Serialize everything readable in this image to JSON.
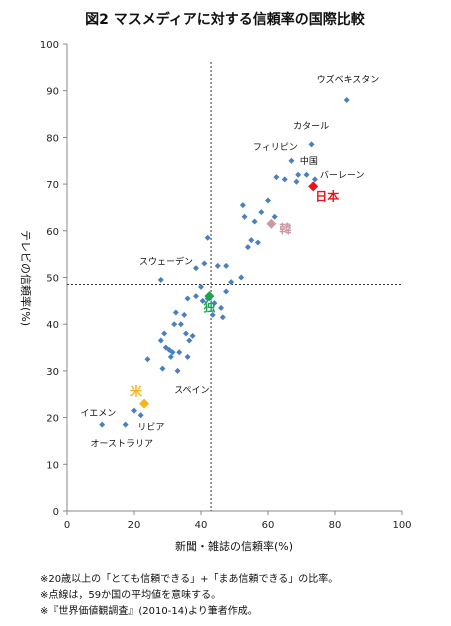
{
  "chart_data": {
    "type": "scatter",
    "title": "図2 マスメディアに対する信頼率の国際比較",
    "xlabel": "新聞・雑誌の信頼率(%)",
    "ylabel": "テレビの信頼率(%)",
    "xlim": [
      0,
      100
    ],
    "ylim": [
      0,
      100
    ],
    "x_ticks": [
      "0",
      "20",
      "40",
      "60",
      "80",
      "100"
    ],
    "y_ticks": [
      "0",
      "10",
      "20",
      "30",
      "40",
      "50",
      "60",
      "70",
      "80",
      "90",
      "100"
    ],
    "grid": false,
    "reference_lines": {
      "x": 43,
      "y": 48.5
    },
    "points": [
      [
        83.5,
        88
      ],
      [
        73,
        78.5
      ],
      [
        67,
        75
      ],
      [
        69,
        72
      ],
      [
        71.5,
        72
      ],
      [
        68.5,
        70.5
      ],
      [
        74,
        71
      ],
      [
        65,
        71
      ],
      [
        62.5,
        71.5
      ],
      [
        60,
        66.5
      ],
      [
        58,
        64
      ],
      [
        62,
        63
      ],
      [
        52.5,
        65.5
      ],
      [
        56,
        62
      ],
      [
        53,
        63
      ],
      [
        55,
        58
      ],
      [
        54,
        56.5
      ],
      [
        57,
        57.5
      ],
      [
        52,
        50
      ],
      [
        49,
        49
      ],
      [
        47.5,
        47
      ],
      [
        47.5,
        52.5
      ],
      [
        45,
        52.5
      ],
      [
        42,
        58.5
      ],
      [
        41,
        53
      ],
      [
        38.5,
        52
      ],
      [
        40,
        48
      ],
      [
        28,
        49.5
      ],
      [
        38.5,
        46
      ],
      [
        40.5,
        45
      ],
      [
        42,
        45.5
      ],
      [
        44,
        44.5
      ],
      [
        46,
        43.5
      ],
      [
        46.5,
        41.5
      ],
      [
        43.5,
        42
      ],
      [
        36,
        45.5
      ],
      [
        32.5,
        42.5
      ],
      [
        35,
        42
      ],
      [
        32,
        40
      ],
      [
        34,
        40
      ],
      [
        35.5,
        38
      ],
      [
        37.5,
        37.5
      ],
      [
        36.5,
        36.5
      ],
      [
        29,
        38
      ],
      [
        28,
        36.5
      ],
      [
        29.5,
        35
      ],
      [
        30.5,
        34.5
      ],
      [
        31.5,
        34
      ],
      [
        33.5,
        34
      ],
      [
        31,
        33
      ],
      [
        24,
        32.5
      ],
      [
        36,
        33
      ],
      [
        28.5,
        30.5
      ],
      [
        33,
        30
      ],
      [
        20,
        21.5
      ],
      [
        22,
        20.5
      ],
      [
        10.5,
        18.5
      ],
      [
        17.5,
        18.5
      ]
    ],
    "highlights": [
      {
        "name": "日本",
        "x": 73.5,
        "y": 69.5,
        "color": "#e8141d"
      },
      {
        "name": "韓",
        "x": 61,
        "y": 61.5,
        "color": "#c99aa4"
      },
      {
        "name": "独",
        "x": 42.5,
        "y": 46,
        "color": "#1aa650"
      },
      {
        "name": "米",
        "x": 23,
        "y": 23,
        "color": "#f5b41e"
      }
    ],
    "point_color": "#4a7fc1",
    "annotations": [
      {
        "text": "ウズベキスタン",
        "x": 74.5,
        "y": 91.8
      },
      {
        "text": "カタール",
        "x": 67.5,
        "y": 81.8
      },
      {
        "text": "フィリピン",
        "x": 55.5,
        "y": 77.3
      },
      {
        "text": "中国",
        "x": 69.5,
        "y": 74.3
      },
      {
        "text": "バーレーン",
        "x": 75.5,
        "y": 71.3
      },
      {
        "text": "スウェーデン",
        "x": 21.5,
        "y": 52.8
      },
      {
        "text": "スペイン",
        "x": 32,
        "y": 25.3
      },
      {
        "text": "イエメン",
        "x": 4,
        "y": 20.3
      },
      {
        "text": "リビア",
        "x": 21,
        "y": 17.3
      },
      {
        "text": "オーストラリア",
        "x": 7,
        "y": 13.8
      }
    ]
  },
  "notes": [
    "※20歳以上の「とても信頼できる」+「まあ信頼できる」の比率。",
    "※点線は，59か国の平均値を意味する。",
    "※『世界価値観調査』(2010-14)より筆者作成。"
  ]
}
